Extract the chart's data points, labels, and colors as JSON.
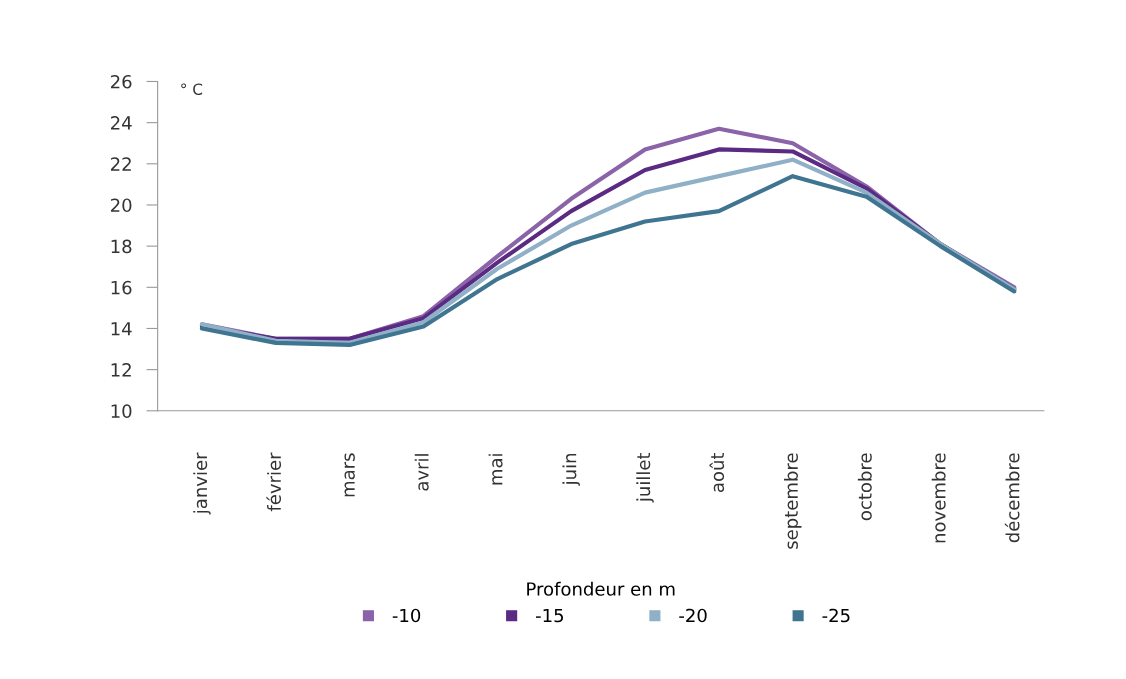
{
  "chart_data": {
    "type": "line",
    "ylabel": "° C",
    "legend_title": "Profondeur en m",
    "legend": "bottom",
    "grid": false,
    "marker": "none",
    "line_style": "solid",
    "categories": [
      "janvier",
      "février",
      "mars",
      "avril",
      "mai",
      "juin",
      "juillet",
      "août",
      "septembre",
      "octobre",
      "novembre",
      "décembre"
    ],
    "ylim": [
      10,
      26
    ],
    "yticks": [
      10,
      12,
      14,
      16,
      18,
      20,
      22,
      24,
      26
    ],
    "series": [
      {
        "name": "-10",
        "color": "#8a63a8",
        "values": [
          14.2,
          13.5,
          13.5,
          14.6,
          17.5,
          20.3,
          22.7,
          23.7,
          23.0,
          20.9,
          18.1,
          16.0
        ]
      },
      {
        "name": "-15",
        "color": "#5b2a82",
        "values": [
          14.1,
          13.5,
          13.5,
          14.5,
          17.2,
          19.7,
          21.7,
          22.7,
          22.6,
          20.8,
          18.1,
          15.9
        ]
      },
      {
        "name": "-20",
        "color": "#8fb0c6",
        "values": [
          14.2,
          13.4,
          13.3,
          14.3,
          16.9,
          19.0,
          20.6,
          21.4,
          22.2,
          20.6,
          18.1,
          15.9
        ]
      },
      {
        "name": "-25",
        "color": "#3f7590",
        "values": [
          14.0,
          13.3,
          13.2,
          14.1,
          16.4,
          18.1,
          19.2,
          19.7,
          21.4,
          20.4,
          18.0,
          15.8
        ]
      }
    ]
  }
}
